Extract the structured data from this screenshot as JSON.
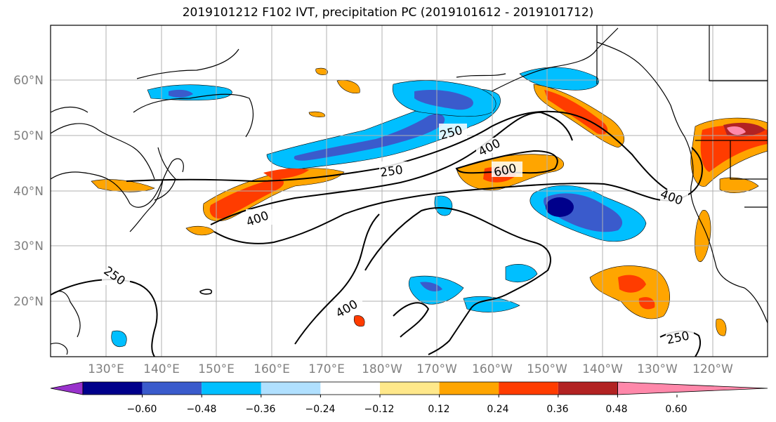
{
  "title": "2019101212 F102 IVT, precipitation PC (2019101612 - 2019101712)",
  "map": {
    "lon_labels": [
      "130°E",
      "140°E",
      "150°E",
      "160°E",
      "170°E",
      "180°W",
      "170°W",
      "160°W",
      "150°W",
      "140°W",
      "130°W",
      "120°W"
    ],
    "lat_labels": [
      "60°N",
      "50°N",
      "40°N",
      "30°N",
      "20°N"
    ],
    "contour_labels": [
      "250",
      "400",
      "600",
      "250",
      "400",
      "400",
      "250",
      "400",
      "250"
    ],
    "ivt_contour_levels": [
      250,
      400,
      600
    ],
    "land_outline_color": "#000000",
    "grid_color": "#b0b0b0"
  },
  "colorbar": {
    "ticks": [
      "−0.60",
      "−0.48",
      "−0.36",
      "−0.24",
      "−0.12",
      "0.12",
      "0.24",
      "0.36",
      "0.48",
      "0.60"
    ],
    "colors": [
      "#9932CC",
      "#00008B",
      "#3a5bcc",
      "#00bfff",
      "#b0e0ff",
      "#ffffff",
      "#ffe88a",
      "#ffa500",
      "#ff3c00",
      "#b22222",
      "#ff88aa"
    ]
  }
}
